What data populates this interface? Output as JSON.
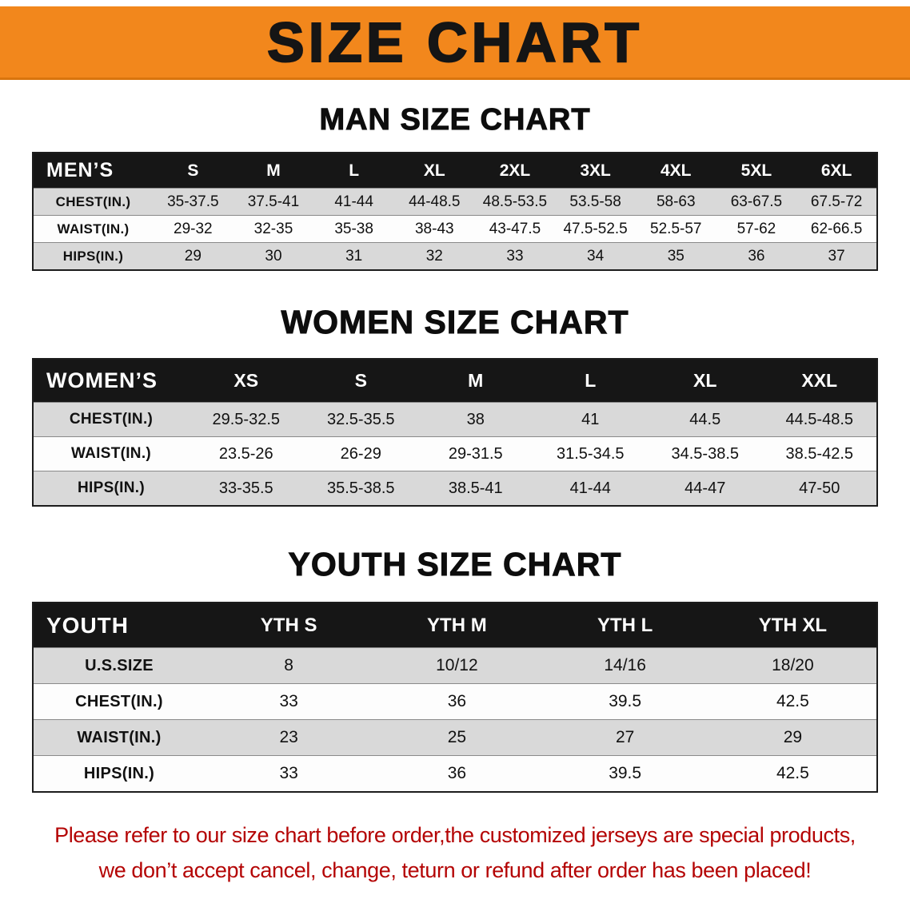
{
  "banner": {
    "title": "SIZE CHART"
  },
  "colors": {
    "banner_bg": "#f2871c",
    "header_bg": "#161616",
    "row_alt": "#d9d9d9",
    "row_base": "#fdfdfd",
    "disclaimer_red": "#b40404"
  },
  "chart_data": [
    {
      "type": "table",
      "title": "MAN SIZE CHART",
      "corner_label": "MEN’S",
      "columns": [
        "S",
        "M",
        "L",
        "XL",
        "2XL",
        "3XL",
        "4XL",
        "5XL",
        "6XL"
      ],
      "rows": [
        {
          "label": "CHEST(IN.)",
          "values": [
            "35-37.5",
            "37.5-41",
            "41-44",
            "44-48.5",
            "48.5-53.5",
            "53.5-58",
            "58-63",
            "63-67.5",
            "67.5-72"
          ]
        },
        {
          "label": "WAIST(IN.)",
          "values": [
            "29-32",
            "32-35",
            "35-38",
            "38-43",
            "43-47.5",
            "47.5-52.5",
            "52.5-57",
            "57-62",
            "62-66.5"
          ]
        },
        {
          "label": "HIPS(IN.)",
          "values": [
            "29",
            "30",
            "31",
            "32",
            "33",
            "34",
            "35",
            "36",
            "37"
          ]
        }
      ]
    },
    {
      "type": "table",
      "title": "WOMEN SIZE CHART",
      "corner_label": "WOMEN’S",
      "columns": [
        "XS",
        "S",
        "M",
        "L",
        "XL",
        "XXL"
      ],
      "rows": [
        {
          "label": "CHEST(IN.)",
          "values": [
            "29.5-32.5",
            "32.5-35.5",
            "38",
            "41",
            "44.5",
            "44.5-48.5"
          ]
        },
        {
          "label": "WAIST(IN.)",
          "values": [
            "23.5-26",
            "26-29",
            "29-31.5",
            "31.5-34.5",
            "34.5-38.5",
            "38.5-42.5"
          ]
        },
        {
          "label": "HIPS(IN.)",
          "values": [
            "33-35.5",
            "35.5-38.5",
            "38.5-41",
            "41-44",
            "44-47",
            "47-50"
          ]
        }
      ]
    },
    {
      "type": "table",
      "title": "YOUTH SIZE CHART",
      "corner_label": "YOUTH",
      "columns": [
        "YTH S",
        "YTH M",
        "YTH L",
        "YTH XL"
      ],
      "rows": [
        {
          "label": "U.S.SIZE",
          "values": [
            "8",
            "10/12",
            "14/16",
            "18/20"
          ]
        },
        {
          "label": "CHEST(IN.)",
          "values": [
            "33",
            "36",
            "39.5",
            "42.5"
          ]
        },
        {
          "label": "WAIST(IN.)",
          "values": [
            "23",
            "25",
            "27",
            "29"
          ]
        },
        {
          "label": "HIPS(IN.)",
          "values": [
            "33",
            "36",
            "39.5",
            "42.5"
          ]
        }
      ]
    }
  ],
  "disclaimer": {
    "line1": "Please refer to our size chart before order,the customized jerseys are special products,",
    "line2": "we don’t accept cancel, change, teturn or refund after order has been placed!"
  }
}
